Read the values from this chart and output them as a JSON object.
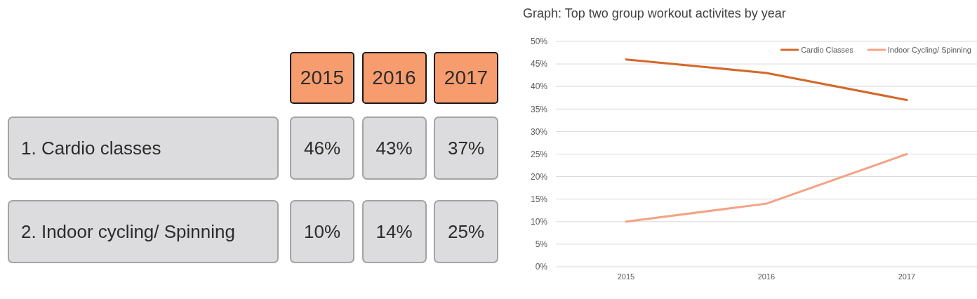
{
  "chart_data": [
    {
      "type": "other",
      "categories": [
        "2015",
        "2016",
        "2017"
      ],
      "y_categories": [
        "1. Cardio classes",
        "2. Indoor cycling/ Spinning"
      ],
      "cell_labels": [
        [
          "46%",
          "43%",
          "37%"
        ],
        [
          "10%",
          "14%",
          "25%"
        ]
      ]
    },
    {
      "type": "line",
      "title": "Graph: Top two group workout activites by year",
      "categories": [
        "2015",
        "2016",
        "2017"
      ],
      "series": [
        {
          "name": "Cardio Classes",
          "color": "#d4682b",
          "values": [
            46,
            43,
            37
          ]
        },
        {
          "name": "Indoor Cycling/ Spinning",
          "color": "#f4a384",
          "values": [
            10,
            14,
            25
          ]
        }
      ],
      "ylim": [
        0,
        50
      ],
      "yticks": [
        {
          "value": 0,
          "label": "0%"
        },
        {
          "value": 5,
          "label": "5%"
        },
        {
          "value": 10,
          "label": "10%"
        },
        {
          "value": 15,
          "label": "15%"
        },
        {
          "value": 20,
          "label": "20%"
        },
        {
          "value": 25,
          "label": "25%"
        },
        {
          "value": 30,
          "label": "30%"
        },
        {
          "value": 35,
          "label": "35%"
        },
        {
          "value": 40,
          "label": "40%"
        },
        {
          "value": 45,
          "label": "45%"
        },
        {
          "value": 50,
          "label": "50%"
        }
      ],
      "grid": "y",
      "legend": "top right",
      "marker": "none",
      "line_style": "solid"
    }
  ]
}
